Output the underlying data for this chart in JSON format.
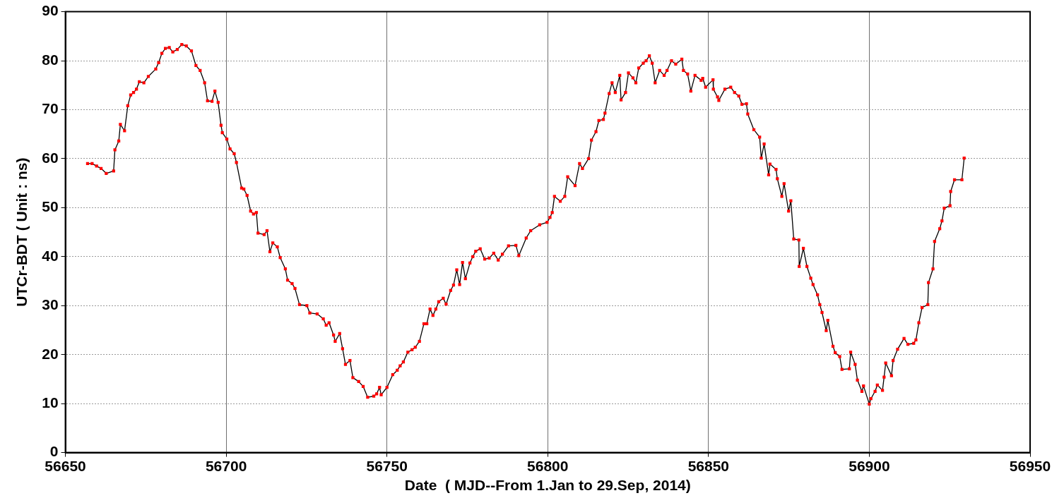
{
  "chart_data": {
    "type": "line",
    "xlabel": "Date  ( MJD--From 1.Jan to 29.Sep, 2014)",
    "ylabel": "UTCr-BDT ( Unit : ns)",
    "xlim": [
      56650,
      56950
    ],
    "xticks": [
      56650,
      56700,
      56750,
      56800,
      56850,
      56900,
      56950
    ],
    "ylim": [
      0,
      90
    ],
    "yticks": [
      0,
      10,
      20,
      30,
      40,
      50,
      60,
      70,
      80,
      90
    ],
    "grid": true,
    "marker": "square",
    "line_style": "solid",
    "series": [
      {
        "color": "#ff0000",
        "x": [
          56656.9,
          56658.3,
          56659.7,
          56661.1,
          56662.7,
          56665.0,
          56665.4,
          56666.6,
          56667.1,
          56668.4,
          56669.4,
          56670.3,
          56671.2,
          56672.1,
          56673.0,
          56674.4,
          56675.8,
          56678.1,
          56679.0,
          56680.0,
          56681.1,
          56682.3,
          56683.4,
          56684.8,
          56686.2,
          56687.6,
          56689.2,
          56690.6,
          56691.9,
          56693.3,
          56694.2,
          56695.6,
          56696.5,
          56697.5,
          56698.4,
          56698.8,
          56700.2,
          56701.2,
          56702.5,
          56703.2,
          56704.8,
          56705.5,
          56706.5,
          56707.6,
          56708.5,
          56709.4,
          56709.9,
          56711.8,
          56712.7,
          56713.6,
          56714.5,
          56715.9,
          56716.8,
          56718.4,
          56719.1,
          56720.5,
          56721.4,
          56722.8,
          56725.1,
          56726.0,
          56728.3,
          56730.2,
          56731.1,
          56732.0,
          56733.4,
          56733.9,
          56735.3,
          56736.2,
          56737.1,
          56738.5,
          56739.4,
          56741.2,
          56742.6,
          56744.0,
          56745.9,
          56746.8,
          56747.7,
          56748.2,
          56750.0,
          56751.8,
          56753.2,
          56754.1,
          56755.1,
          56756.5,
          56757.8,
          56758.8,
          56760.1,
          56761.5,
          56762.4,
          56763.4,
          56764.3,
          56765.2,
          56766.1,
          56767.5,
          56768.4,
          56769.8,
          56770.7,
          56771.7,
          56772.6,
          56773.5,
          56774.4,
          56775.8,
          56776.7,
          56777.6,
          56779.0,
          56780.4,
          56781.8,
          56783.2,
          56784.6,
          56785.9,
          56787.8,
          56790.1,
          56791.0,
          56793.3,
          56794.7,
          56797.5,
          56799.8,
          56800.7,
          56801.4,
          56802.1,
          56803.9,
          56805.3,
          56806.2,
          56808.5,
          56809.9,
          56810.8,
          56812.7,
          56813.6,
          56815.0,
          56815.9,
          56817.3,
          56817.8,
          56819.1,
          56820.0,
          56821.0,
          56822.4,
          56822.8,
          56824.2,
          56825.1,
          56826.5,
          56827.4,
          56828.3,
          56829.7,
          56830.6,
          56831.6,
          56832.5,
          56833.4,
          56834.8,
          56836.2,
          56837.1,
          56838.5,
          56839.8,
          56841.7,
          56842.2,
          56843.5,
          56844.5,
          56845.8,
          56847.7,
          56848.2,
          56849.1,
          56851.4,
          56851.5,
          56852.8,
          56853.2,
          56855.1,
          56856.9,
          56858.1,
          56859.4,
          56860.4,
          56861.8,
          56862.2,
          56864.1,
          56865.9,
          56866.4,
          56867.3,
          56868.7,
          56869.1,
          56871.0,
          56871.4,
          56872.8,
          56873.5,
          56874.9,
          56875.6,
          56876.5,
          56878.1,
          56878.2,
          56879.5,
          56880.6,
          56881.8,
          56882.5,
          56883.9,
          56884.6,
          56885.3,
          56886.6,
          56887.1,
          56888.7,
          56889.4,
          56890.8,
          56891.5,
          56893.8,
          56894.2,
          56895.6,
          56896.3,
          56897.7,
          56898.2,
          56900.0,
          56900.5,
          56901.8,
          56902.5,
          56904.1,
          56904.6,
          56905.1,
          56906.9,
          56907.4,
          56908.8,
          56910.8,
          56912.0,
          56913.8,
          56914.5,
          56915.4,
          56916.4,
          56918.2,
          56918.4,
          56919.8,
          56920.3,
          56921.9,
          56922.6,
          56923.3,
          56925.1,
          56925.3,
          56926.5,
          56928.8,
          56929.5
        ],
        "values": [
          59,
          59,
          58.5,
          58,
          57,
          57.5,
          61.8,
          63.6,
          67,
          65.7,
          70.8,
          73,
          73.5,
          74.2,
          75.7,
          75.5,
          76.8,
          78.3,
          79.6,
          81.5,
          82.5,
          82.7,
          81.8,
          82.3,
          83.3,
          83,
          82,
          79,
          78,
          75.5,
          71.8,
          71.7,
          73.8,
          71.5,
          66.8,
          65.3,
          64,
          62,
          61,
          59.2,
          54,
          53.8,
          52.5,
          49.3,
          48.7,
          49,
          44.8,
          44.5,
          45.3,
          41,
          42.8,
          42,
          39.8,
          37.5,
          35.2,
          34.5,
          33.5,
          30.2,
          30,
          28.5,
          28.3,
          27.3,
          26,
          26.5,
          24,
          22.7,
          24.3,
          21.2,
          18,
          18.8,
          15.3,
          14.5,
          13.5,
          11.3,
          11.5,
          12,
          13.3,
          11.8,
          13.3,
          15.9,
          16.8,
          17.7,
          18.5,
          20.5,
          21,
          21.5,
          22.7,
          26.3,
          26.3,
          29.3,
          28,
          29.3,
          30.8,
          31.5,
          30.3,
          33.1,
          34.2,
          37.3,
          34.3,
          38.8,
          35.5,
          38.7,
          40,
          41.1,
          41.6,
          39.5,
          39.7,
          40.7,
          39.3,
          40.5,
          42.2,
          42.3,
          40.2,
          43.8,
          45.3,
          46.5,
          47,
          48,
          49,
          52.3,
          51.3,
          52.3,
          56.3,
          54.5,
          59,
          58,
          60,
          63.8,
          65.5,
          67.8,
          68,
          69.3,
          73.3,
          75.5,
          73.5,
          77,
          72,
          73.5,
          77.5,
          76.5,
          75.5,
          78.5,
          79.5,
          80,
          81,
          79.5,
          75.5,
          78,
          77,
          78,
          80,
          79.3,
          80.3,
          78,
          77.3,
          73.8,
          77,
          76,
          76.4,
          74.6,
          76.1,
          74.2,
          72.6,
          71.9,
          74.2,
          74.6,
          73.5,
          72.8,
          71.1,
          71.2,
          69.1,
          65.9,
          64.4,
          60.1,
          63,
          56.7,
          58.9,
          57.8,
          55.9,
          52.3,
          54.9,
          49.3,
          51.4,
          43.6,
          43.4,
          38,
          41.7,
          38,
          35.6,
          34.3,
          32.2,
          30.2,
          28.6,
          24.9,
          27,
          21.7,
          20.4,
          19.6,
          17,
          17.1,
          20.5,
          18,
          14.8,
          12.5,
          13.6,
          9.9,
          11,
          12.5,
          13.8,
          12.7,
          15.4,
          18.3,
          15.7,
          18.8,
          21.1,
          23.3,
          22.1,
          22.3,
          23,
          26.5,
          29.6,
          30.2,
          34.7,
          37.5,
          43.1,
          45.7,
          47.3,
          49.9,
          50.4,
          53.3,
          55.7,
          55.7,
          60.1
        ]
      }
    ]
  }
}
